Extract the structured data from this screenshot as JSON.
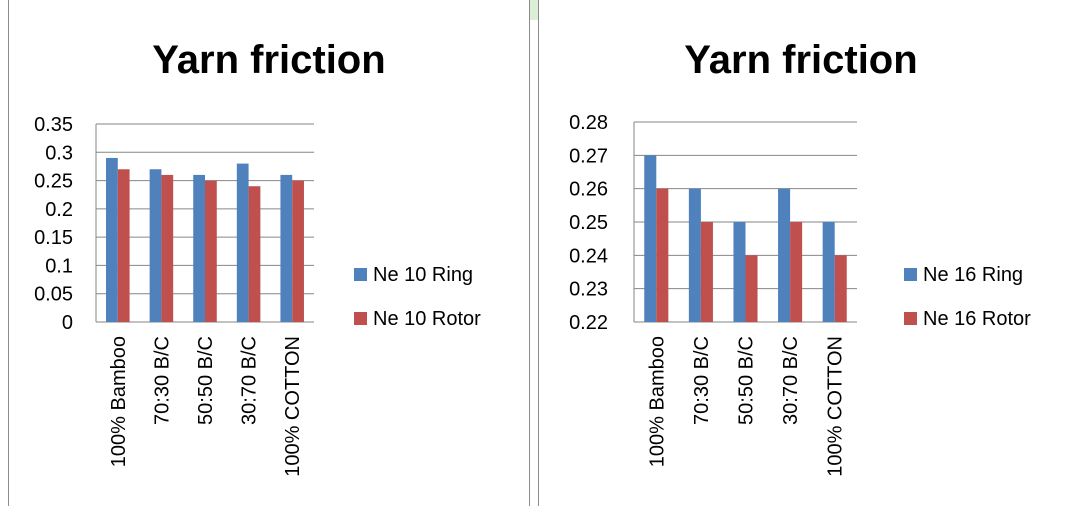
{
  "colors": {
    "ring": "#4f81bd",
    "rotor": "#c0504d",
    "grid": "#868686",
    "text": "#000000"
  },
  "chart_data": [
    {
      "type": "bar",
      "title": "Yarn friction",
      "categories": [
        "100% Bamboo",
        "70:30 B/C",
        "50:50 B/C",
        "30:70 B/C",
        "100% COTTON"
      ],
      "series": [
        {
          "name": "Ne 10 Ring",
          "values": [
            0.29,
            0.27,
            0.26,
            0.28,
            0.26
          ]
        },
        {
          "name": "Ne 10 Rotor",
          "values": [
            0.27,
            0.26,
            0.25,
            0.24,
            0.25
          ]
        }
      ],
      "ylim": [
        0,
        0.35
      ],
      "yticks": [
        "0.35",
        "0.3",
        "0.25",
        "0.2",
        "0.15",
        "0.1",
        "0.05",
        "0"
      ],
      "grid": true,
      "legend": "right"
    },
    {
      "type": "bar",
      "title": "Yarn friction",
      "categories": [
        "100% Bamboo",
        "70:30 B/C",
        "50:50 B/C",
        "30:70 B/C",
        "100% COTTON"
      ],
      "series": [
        {
          "name": "Ne 16 Ring",
          "values": [
            0.27,
            0.26,
            0.25,
            0.26,
            0.25
          ]
        },
        {
          "name": "Ne 16 Rotor",
          "values": [
            0.26,
            0.25,
            0.24,
            0.25,
            0.24
          ]
        }
      ],
      "ylim": [
        0.22,
        0.28
      ],
      "yticks": [
        "0.28",
        "0.27",
        "0.26",
        "0.25",
        "0.24",
        "0.23",
        "0.22"
      ],
      "grid": true,
      "legend": "right"
    }
  ]
}
